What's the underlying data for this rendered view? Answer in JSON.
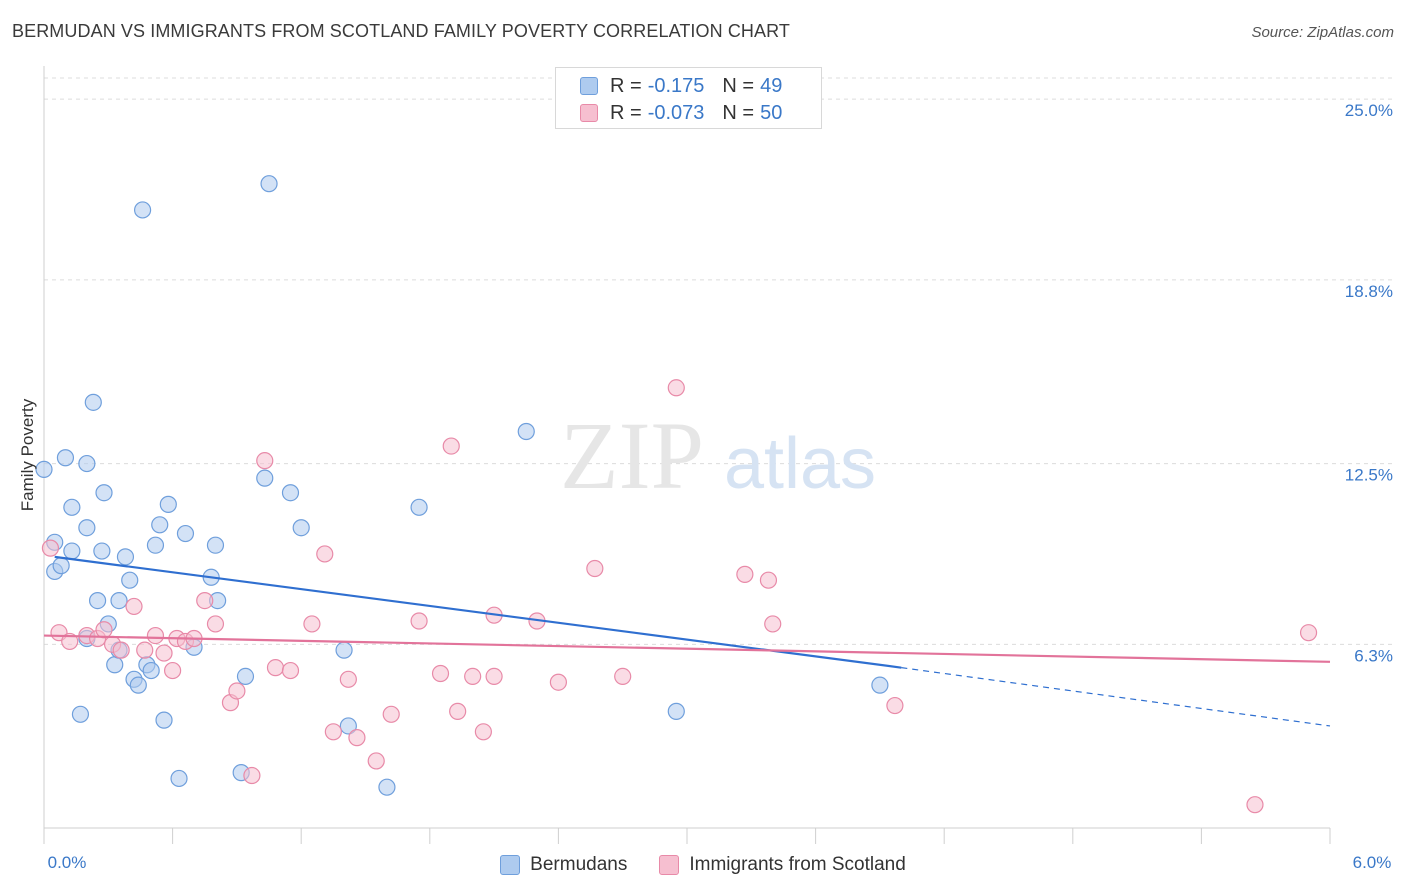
{
  "header": {
    "title": "BERMUDAN VS IMMIGRANTS FROM SCOTLAND FAMILY POVERTY CORRELATION CHART",
    "source": "Source: ZipAtlas.com"
  },
  "watermark": {
    "zip": "ZIP",
    "atlas": "atlas"
  },
  "colors": {
    "blue_fill": "#aecbef",
    "blue_stroke": "#6f9fdc",
    "blue_line": "#2f6fd0",
    "pink_fill": "#f6bfd0",
    "pink_stroke": "#e88aa8",
    "pink_line": "#e2739a",
    "tick_text": "#3a78c8",
    "grid": "#dcdcdc"
  },
  "legend_top": {
    "rows": [
      {
        "series": "Bermudans",
        "r_label": "R =",
        "r_value": "-0.175",
        "n_label": "N =",
        "n_value": "49"
      },
      {
        "series": "Immigrants from Scotland",
        "r_label": "R =",
        "r_value": "-0.073",
        "n_label": "N =",
        "n_value": "50"
      }
    ]
  },
  "chart_data": {
    "type": "scatter",
    "title": "BERMUDAN VS IMMIGRANTS FROM SCOTLAND FAMILY POVERTY CORRELATION CHART",
    "xlabel": "",
    "ylabel": "Family Poverty",
    "xlim": [
      0.0,
      6.0
    ],
    "ylim": [
      0.0,
      26.0
    ],
    "x_tick_labels": [
      "0.0%",
      "6.0%"
    ],
    "y_ticks": [
      6.3,
      12.5,
      18.8,
      25.0
    ],
    "y_tick_labels": [
      "6.3%",
      "12.5%",
      "18.8%",
      "25.0%"
    ],
    "grid": true,
    "legend": [
      "Bermudans",
      "Immigrants from Scotland"
    ],
    "series": [
      {
        "name": "Bermudans",
        "trend": {
          "x0": 0.05,
          "y0": 9.3,
          "x1": 4.0,
          "y1": 5.5,
          "dash_to_x": 6.0,
          "dash_to_y": 3.5
        },
        "points": [
          [
            0.0,
            12.3
          ],
          [
            0.05,
            9.8
          ],
          [
            0.05,
            8.8
          ],
          [
            0.08,
            9.0
          ],
          [
            0.1,
            12.7
          ],
          [
            0.13,
            11.0
          ],
          [
            0.13,
            9.5
          ],
          [
            0.17,
            3.9
          ],
          [
            0.2,
            12.5
          ],
          [
            0.2,
            10.3
          ],
          [
            0.23,
            14.6
          ],
          [
            0.25,
            7.8
          ],
          [
            0.27,
            9.5
          ],
          [
            0.28,
            11.5
          ],
          [
            0.3,
            7.0
          ],
          [
            0.33,
            5.6
          ],
          [
            0.35,
            7.8
          ],
          [
            0.35,
            6.1
          ],
          [
            0.38,
            9.3
          ],
          [
            0.4,
            8.5
          ],
          [
            0.42,
            5.1
          ],
          [
            0.44,
            4.9
          ],
          [
            0.46,
            21.2
          ],
          [
            0.48,
            5.6
          ],
          [
            0.5,
            5.4
          ],
          [
            0.52,
            9.7
          ],
          [
            0.54,
            10.4
          ],
          [
            0.56,
            3.7
          ],
          [
            0.58,
            11.1
          ],
          [
            0.63,
            1.7
          ],
          [
            0.66,
            10.1
          ],
          [
            0.7,
            6.2
          ],
          [
            0.78,
            8.6
          ],
          [
            0.8,
            9.7
          ],
          [
            0.81,
            7.8
          ],
          [
            0.92,
            1.9
          ],
          [
            0.94,
            5.2
          ],
          [
            1.03,
            12.0
          ],
          [
            1.05,
            22.1
          ],
          [
            1.15,
            11.5
          ],
          [
            1.2,
            10.3
          ],
          [
            1.4,
            6.1
          ],
          [
            1.42,
            3.5
          ],
          [
            1.6,
            1.4
          ],
          [
            1.75,
            11.0
          ],
          [
            2.25,
            13.6
          ],
          [
            2.95,
            4.0
          ],
          [
            3.9,
            4.9
          ],
          [
            0.2,
            6.5
          ]
        ]
      },
      {
        "name": "Immigrants from Scotland",
        "trend": {
          "x0": 0.0,
          "y0": 6.6,
          "x1": 6.0,
          "y1": 5.7
        },
        "points": [
          [
            0.03,
            9.6
          ],
          [
            0.07,
            6.7
          ],
          [
            0.12,
            6.4
          ],
          [
            0.2,
            6.6
          ],
          [
            0.25,
            6.5
          ],
          [
            0.28,
            6.8
          ],
          [
            0.32,
            6.3
          ],
          [
            0.36,
            6.1
          ],
          [
            0.42,
            7.6
          ],
          [
            0.47,
            6.1
          ],
          [
            0.52,
            6.6
          ],
          [
            0.56,
            6.0
          ],
          [
            0.6,
            5.4
          ],
          [
            0.62,
            6.5
          ],
          [
            0.66,
            6.4
          ],
          [
            0.7,
            6.5
          ],
          [
            0.75,
            7.8
          ],
          [
            0.8,
            7.0
          ],
          [
            0.87,
            4.3
          ],
          [
            0.9,
            4.7
          ],
          [
            0.97,
            1.8
          ],
          [
            1.03,
            12.6
          ],
          [
            1.08,
            5.5
          ],
          [
            1.15,
            5.4
          ],
          [
            1.25,
            7.0
          ],
          [
            1.31,
            9.4
          ],
          [
            1.35,
            3.3
          ],
          [
            1.42,
            5.1
          ],
          [
            1.46,
            3.1
          ],
          [
            1.55,
            2.3
          ],
          [
            1.62,
            3.9
          ],
          [
            1.75,
            7.1
          ],
          [
            1.85,
            5.3
          ],
          [
            1.9,
            13.1
          ],
          [
            1.93,
            4.0
          ],
          [
            2.0,
            5.2
          ],
          [
            2.05,
            3.3
          ],
          [
            2.1,
            7.3
          ],
          [
            2.1,
            5.2
          ],
          [
            2.3,
            7.1
          ],
          [
            2.4,
            5.0
          ],
          [
            2.57,
            8.9
          ],
          [
            2.7,
            5.2
          ],
          [
            2.95,
            15.1
          ],
          [
            3.27,
            8.7
          ],
          [
            3.38,
            8.5
          ],
          [
            3.4,
            7.0
          ],
          [
            3.97,
            4.2
          ],
          [
            5.65,
            0.8
          ],
          [
            5.9,
            6.7
          ]
        ]
      }
    ]
  }
}
